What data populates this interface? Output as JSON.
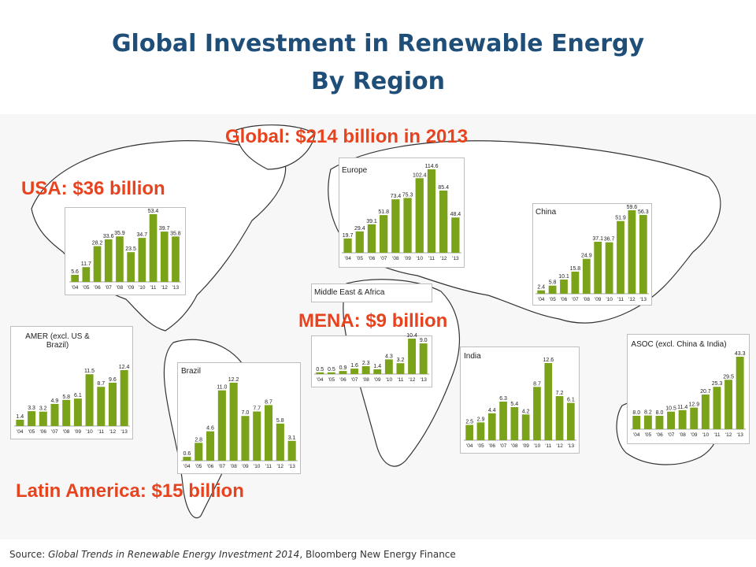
{
  "title_line1": "Global Investment in Renewable Energy",
  "title_line2": "By Region",
  "callouts": {
    "global": "Global: $214 billion in 2013",
    "usa": "USA: $36 billion",
    "mena": "MENA: $9 billion",
    "latam": "Latin America: $15 billion"
  },
  "source": {
    "prefix": "Source: ",
    "publication": "Global Trends in Renewable Energy Investment 2014",
    "suffix": ", Bloomberg New Energy Finance"
  },
  "colors": {
    "bar": "#7aa31a",
    "callout": "#e8431f",
    "title": "#1f4e79"
  },
  "chart_data": [
    {
      "id": "usa",
      "type": "bar",
      "title": "",
      "categories": [
        "'04",
        "'05",
        "'06",
        "'07",
        "'08",
        "'09",
        "'10",
        "'11",
        "'12",
        "'13"
      ],
      "values": [
        5.6,
        11.7,
        28.2,
        33.6,
        35.9,
        23.5,
        34.7,
        53.4,
        39.7,
        35.8
      ]
    },
    {
      "id": "europe",
      "type": "bar",
      "title": "Europe",
      "categories": [
        "'04",
        "'05",
        "'06",
        "'07",
        "'08",
        "'09",
        "'10",
        "'11",
        "'12",
        "'13"
      ],
      "values": [
        19.7,
        29.4,
        39.1,
        51.8,
        73.4,
        75.3,
        102.4,
        114.6,
        85.4,
        48.4
      ]
    },
    {
      "id": "china",
      "type": "bar",
      "title": "China",
      "categories": [
        "'04",
        "'05",
        "'06",
        "'07",
        "'08",
        "'09",
        "'10",
        "'11",
        "'12",
        "'13"
      ],
      "values": [
        2.4,
        5.8,
        10.1,
        15.8,
        24.9,
        37.1,
        36.7,
        51.9,
        59.6,
        56.3
      ]
    },
    {
      "id": "mena",
      "type": "bar",
      "title": "Middle East & Africa",
      "categories": [
        "'04",
        "'05",
        "'06",
        "'07",
        "'08",
        "'09",
        "'10",
        "'11",
        "'12",
        "'13"
      ],
      "values": [
        0.5,
        0.5,
        0.9,
        1.6,
        2.3,
        1.4,
        4.3,
        3.2,
        10.4,
        9.0
      ]
    },
    {
      "id": "amer",
      "type": "bar",
      "title": "AMER (excl. US & Brazil)",
      "categories": [
        "'04",
        "'05",
        "'06",
        "'07",
        "'08",
        "'09",
        "'10",
        "'11",
        "'12",
        "'13"
      ],
      "values": [
        1.4,
        3.3,
        3.2,
        4.9,
        5.8,
        6.1,
        11.5,
        8.7,
        9.6,
        12.4
      ]
    },
    {
      "id": "brazil",
      "type": "bar",
      "title": "Brazil",
      "categories": [
        "'04",
        "'05",
        "'06",
        "'07",
        "'08",
        "'09",
        "'10",
        "'11",
        "'12",
        "'13"
      ],
      "values": [
        0.6,
        2.8,
        4.6,
        11.0,
        12.2,
        7.0,
        7.7,
        8.7,
        5.8,
        3.1
      ]
    },
    {
      "id": "india",
      "type": "bar",
      "title": "India",
      "categories": [
        "'04",
        "'05",
        "'06",
        "'07",
        "'08",
        "'09",
        "'10",
        "'11",
        "'12",
        "'13"
      ],
      "values": [
        2.5,
        2.9,
        4.4,
        6.3,
        5.4,
        4.2,
        8.7,
        12.6,
        7.2,
        6.1
      ]
    },
    {
      "id": "asoc",
      "type": "bar",
      "title": "ASOC (excl. China & India)",
      "categories": [
        "'04",
        "'05",
        "'06",
        "'07",
        "'08",
        "'09",
        "'10",
        "'11",
        "'12",
        "'13"
      ],
      "values": [
        8.0,
        8.2,
        8.0,
        10.5,
        11.4,
        12.9,
        20.7,
        25.3,
        29.5,
        43.3
      ]
    }
  ]
}
